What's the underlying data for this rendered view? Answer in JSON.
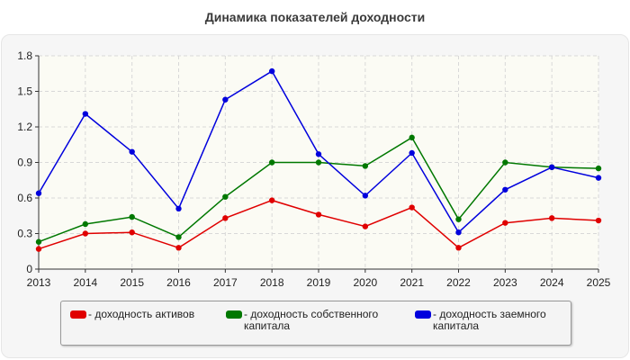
{
  "chart_data": {
    "type": "line",
    "title": "Динамика показателей доходности",
    "xlabel": "",
    "ylabel": "",
    "x": [
      "2013",
      "2014",
      "2015",
      "2016",
      "2017",
      "2018",
      "2019",
      "2020",
      "2021",
      "2022",
      "2023",
      "2024",
      "2025"
    ],
    "ylim": [
      0,
      1.8
    ],
    "yticks": [
      "0",
      "0.3",
      "0.6",
      "0.9",
      "1.2",
      "1.5",
      "1.8"
    ],
    "grid": true,
    "legend_position": "bottom",
    "series": [
      {
        "name": "- доходность активов",
        "color": "#e00000",
        "values": [
          0.17,
          0.3,
          0.31,
          0.18,
          0.43,
          0.58,
          0.46,
          0.36,
          0.52,
          0.18,
          0.39,
          0.43,
          0.41
        ]
      },
      {
        "name": "- доходность собственного\nкапитала",
        "color": "#007800",
        "values": [
          0.23,
          0.38,
          0.44,
          0.27,
          0.61,
          0.9,
          0.9,
          0.87,
          1.11,
          0.42,
          0.9,
          0.86,
          0.85
        ]
      },
      {
        "name": "- доходность заемного\nкапитала",
        "color": "#0000dd",
        "values": [
          0.64,
          1.31,
          0.99,
          0.51,
          1.43,
          1.67,
          0.97,
          0.62,
          0.98,
          0.31,
          0.67,
          0.86,
          0.77
        ]
      }
    ]
  }
}
